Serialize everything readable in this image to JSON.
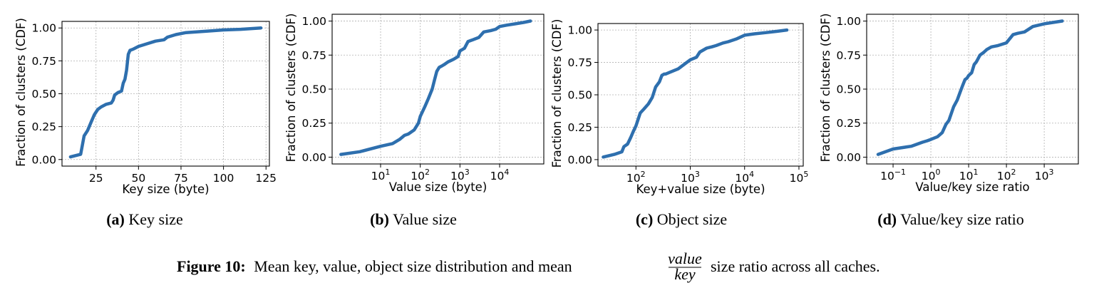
{
  "figure": {
    "caption_label": "Figure 10:",
    "caption_before": "Mean key, value, object size distribution and mean",
    "caption_frac_num": "value",
    "caption_frac_den": "key",
    "caption_after": "size ratio across all caches."
  },
  "chart_data": [
    {
      "type": "line",
      "subcaption_tag": "(a)",
      "subcaption_text": "Key size",
      "xlabel": "Key size (byte)",
      "ylabel": "Fraction of clusters (CDF)",
      "xscale": "linear",
      "xlim": [
        5,
        127
      ],
      "ylim": [
        -0.05,
        1.05
      ],
      "xticks": [
        25,
        50,
        75,
        100,
        125
      ],
      "xtick_labels": [
        "25",
        "50",
        "75",
        "100",
        "125"
      ],
      "yticks": [
        0,
        0.25,
        0.5,
        0.75,
        1.0
      ],
      "ytick_labels": [
        "0.00",
        "0.25",
        "0.50",
        "0.75",
        "1.00"
      ],
      "grid": true,
      "x": [
        10,
        16,
        18,
        20,
        22,
        24,
        26,
        28,
        31,
        34,
        35,
        36,
        38,
        40,
        41,
        42,
        43,
        44,
        45,
        47,
        50,
        55,
        60,
        65,
        67,
        72,
        78,
        90,
        100,
        110,
        122
      ],
      "y": [
        0.02,
        0.04,
        0.18,
        0.22,
        0.28,
        0.34,
        0.38,
        0.4,
        0.42,
        0.43,
        0.45,
        0.49,
        0.51,
        0.52,
        0.58,
        0.61,
        0.68,
        0.8,
        0.83,
        0.84,
        0.86,
        0.88,
        0.9,
        0.91,
        0.93,
        0.95,
        0.965,
        0.975,
        0.985,
        0.99,
        1.0
      ]
    },
    {
      "type": "line",
      "subcaption_tag": "(b)",
      "subcaption_text": "Value size",
      "xlabel": "Value size (byte)",
      "ylabel": "Fraction of clusters (CDF)",
      "xscale": "log",
      "xlim": [
        0.6,
        130000
      ],
      "ylim": [
        -0.05,
        1.05
      ],
      "xticks": [
        10,
        100,
        1000,
        10000
      ],
      "xtick_base": [
        "10",
        "10",
        "10",
        "10"
      ],
      "xtick_exp": [
        "1",
        "2",
        "3",
        "4"
      ],
      "yticks": [
        0,
        0.25,
        0.5,
        0.75,
        1.0
      ],
      "ytick_labels": [
        "0.00",
        "0.25",
        "0.50",
        "0.75",
        "1.00"
      ],
      "grid": true,
      "x": [
        1,
        3,
        10,
        20,
        30,
        40,
        50,
        70,
        90,
        100,
        130,
        160,
        200,
        230,
        260,
        300,
        350,
        400,
        500,
        700,
        900,
        1000,
        1300,
        1600,
        2000,
        3000,
        4000,
        6000,
        8000,
        10000,
        15000,
        25000,
        40000,
        60000
      ],
      "y": [
        0.02,
        0.04,
        0.08,
        0.1,
        0.13,
        0.16,
        0.17,
        0.2,
        0.25,
        0.3,
        0.37,
        0.43,
        0.5,
        0.57,
        0.63,
        0.66,
        0.67,
        0.68,
        0.7,
        0.72,
        0.74,
        0.78,
        0.8,
        0.85,
        0.86,
        0.88,
        0.92,
        0.93,
        0.94,
        0.96,
        0.97,
        0.98,
        0.99,
        1.0
      ]
    },
    {
      "type": "line",
      "subcaption_tag": "(c)",
      "subcaption_text": "Object size",
      "xlabel": "Key+value size (byte)",
      "ylabel": "Fraction of clusters (CDF)",
      "xscale": "log",
      "xlim": [
        20,
        120000
      ],
      "ylim": [
        -0.05,
        1.05
      ],
      "xticks": [
        100,
        1000,
        10000,
        100000
      ],
      "xtick_base": [
        "10",
        "10",
        "10",
        "10"
      ],
      "xtick_exp": [
        "2",
        "3",
        "4",
        "5"
      ],
      "yticks": [
        0,
        0.25,
        0.5,
        0.75,
        1.0
      ],
      "ytick_labels": [
        "0.00",
        "0.25",
        "0.50",
        "0.75",
        "1.00"
      ],
      "grid": true,
      "x": [
        25,
        40,
        55,
        60,
        70,
        80,
        90,
        100,
        120,
        140,
        170,
        200,
        230,
        270,
        300,
        330,
        350,
        400,
        600,
        800,
        1000,
        1300,
        1500,
        2000,
        2500,
        3000,
        4000,
        5000,
        7000,
        10000,
        15000,
        25000,
        40000,
        60000
      ],
      "y": [
        0.02,
        0.04,
        0.06,
        0.1,
        0.12,
        0.17,
        0.22,
        0.26,
        0.36,
        0.39,
        0.43,
        0.48,
        0.56,
        0.6,
        0.65,
        0.66,
        0.66,
        0.67,
        0.7,
        0.74,
        0.77,
        0.79,
        0.83,
        0.86,
        0.87,
        0.88,
        0.9,
        0.91,
        0.93,
        0.96,
        0.97,
        0.98,
        0.99,
        1.0
      ]
    },
    {
      "type": "line",
      "subcaption_tag": "(d)",
      "subcaption_text": "Value/key size ratio",
      "xlabel": "Value/key size ratio",
      "ylabel": "Fraction of clusters (CDF)",
      "xscale": "log",
      "xlim": [
        0.02,
        8000
      ],
      "ylim": [
        -0.05,
        1.05
      ],
      "xticks": [
        0.1,
        1,
        10,
        100,
        1000
      ],
      "xtick_base": [
        "10",
        "10",
        "10",
        "10",
        "10"
      ],
      "xtick_exp": [
        "−1",
        "0",
        "1",
        "2",
        "3"
      ],
      "yticks": [
        0,
        0.25,
        0.5,
        0.75,
        1.0
      ],
      "ytick_labels": [
        "0.00",
        "0.25",
        "0.50",
        "0.75",
        "1.00"
      ],
      "grid": true,
      "x": [
        0.04,
        0.1,
        0.3,
        0.6,
        0.8,
        1.0,
        1.5,
        2.0,
        2.5,
        3.0,
        4.0,
        5.0,
        6.0,
        7.0,
        8.0,
        9.0,
        10,
        12,
        14,
        16,
        20,
        25,
        30,
        40,
        60,
        100,
        150,
        200,
        300,
        500,
        1000,
        3000
      ],
      "y": [
        0.02,
        0.06,
        0.08,
        0.11,
        0.12,
        0.13,
        0.15,
        0.18,
        0.24,
        0.27,
        0.37,
        0.42,
        0.48,
        0.53,
        0.57,
        0.58,
        0.6,
        0.62,
        0.68,
        0.7,
        0.75,
        0.77,
        0.79,
        0.81,
        0.82,
        0.84,
        0.9,
        0.91,
        0.92,
        0.96,
        0.98,
        1.0
      ]
    }
  ]
}
